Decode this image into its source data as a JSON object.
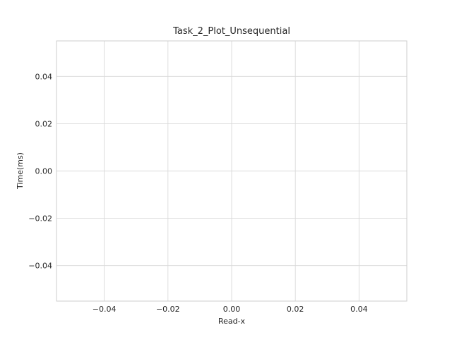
{
  "chart_data": {
    "type": "line",
    "title": "Task_2_Plot_Unsequential",
    "xlabel": "Read-x",
    "ylabel": "Time(ms)",
    "xlim": [
      -0.055,
      0.055
    ],
    "ylim": [
      -0.055,
      0.055
    ],
    "x_ticks": [
      -0.04,
      -0.02,
      0.0,
      0.02,
      0.04
    ],
    "x_tick_labels": [
      "−0.04",
      "−0.02",
      "0.00",
      "0.02",
      "0.04"
    ],
    "y_ticks": [
      -0.04,
      -0.02,
      0.0,
      0.02,
      0.04
    ],
    "y_tick_labels": [
      "−0.04",
      "−0.02",
      "0.00",
      "0.02",
      "0.04"
    ],
    "grid": true,
    "series": [],
    "colors": {
      "grid": "#d9d9d9",
      "frame": "#cccccc",
      "text": "#262626",
      "background": "#ffffff"
    }
  }
}
